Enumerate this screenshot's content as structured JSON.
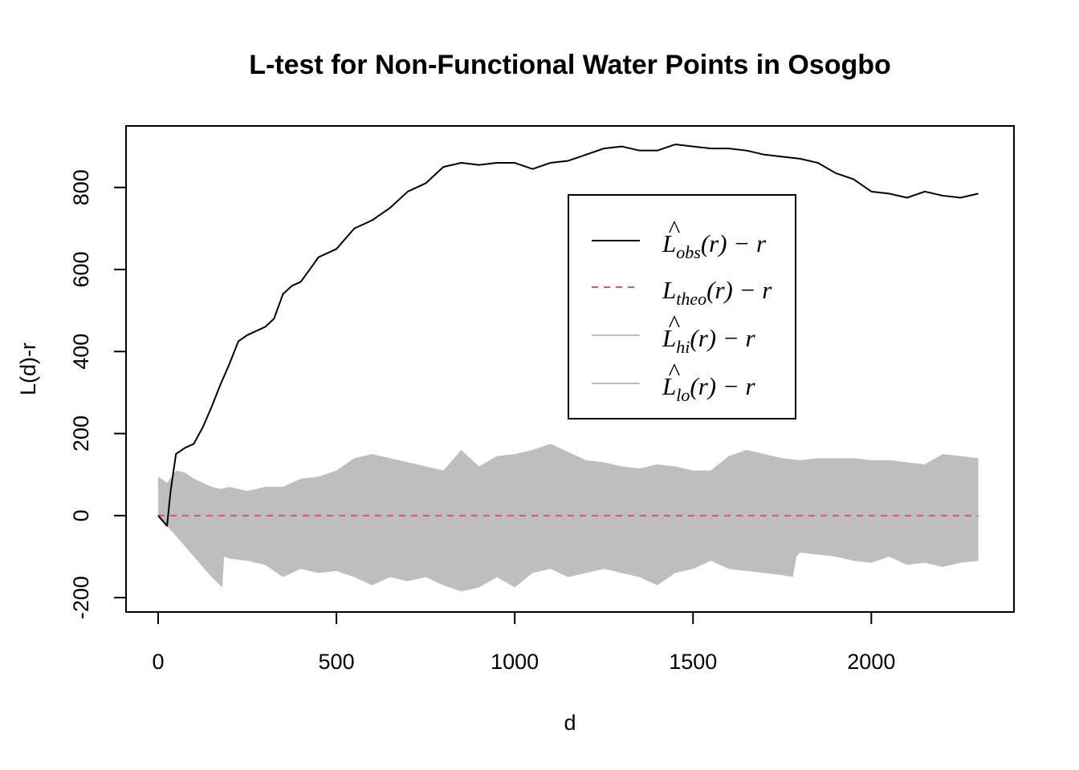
{
  "chart_data": {
    "type": "line",
    "title": "L-test for Non-Functional Water Points in Osogbo",
    "xlabel": "d",
    "ylabel": "L(d)-r",
    "xlim": [
      -90,
      2400
    ],
    "ylim": [
      -235,
      950
    ],
    "x_ticks": [
      0,
      500,
      1000,
      1500,
      2000
    ],
    "x_tick_labels": [
      "0",
      "500",
      "1000",
      "1500",
      "2000"
    ],
    "y_ticks": [
      -200,
      0,
      200,
      400,
      600,
      800
    ],
    "y_tick_labels": [
      "-200",
      "0",
      "200",
      "400",
      "600",
      "800"
    ],
    "grid": false,
    "legend_position": "top-right",
    "legend": [
      {
        "label": "L̂obs(r) − r",
        "main": "L",
        "hat": "^",
        "sub": "obs",
        "tail": "(r) − r",
        "color": "#000000",
        "style": "solid"
      },
      {
        "label": "Ltheo(r) − r",
        "main": "L",
        "hat": "",
        "sub": "theo",
        "tail": "(r) − r",
        "color": "#DF536B",
        "style": "dashed"
      },
      {
        "label": "L̂hi(r) − r",
        "main": "L",
        "hat": "^",
        "sub": "hi",
        "tail": "(r) − r",
        "color": "#BEBEBE",
        "style": "solid"
      },
      {
        "label": "L̂lo(r) − r",
        "main": "L",
        "hat": "^",
        "sub": "lo",
        "tail": "(r) − r",
        "color": "#BEBEBE",
        "style": "solid"
      }
    ],
    "series": [
      {
        "name": "obs",
        "color": "#000000",
        "x": [
          0,
          10,
          20,
          25,
          35,
          50,
          75,
          100,
          125,
          150,
          175,
          200,
          225,
          250,
          300,
          325,
          350,
          375,
          400,
          450,
          500,
          550,
          600,
          650,
          700,
          750,
          800,
          850,
          900,
          950,
          1000,
          1050,
          1100,
          1150,
          1200,
          1250,
          1300,
          1350,
          1400,
          1450,
          1500,
          1550,
          1600,
          1650,
          1700,
          1750,
          1800,
          1850,
          1900,
          1950,
          2000,
          2050,
          2100,
          2150,
          2200,
          2250,
          2300
        ],
        "y": [
          0,
          -10,
          -20,
          -25,
          60,
          150,
          165,
          175,
          215,
          265,
          320,
          370,
          425,
          440,
          460,
          480,
          540,
          560,
          570,
          630,
          650,
          700,
          720,
          750,
          790,
          810,
          850,
          860,
          855,
          860,
          860,
          845,
          860,
          865,
          880,
          895,
          900,
          890,
          890,
          905,
          900,
          895,
          895,
          890,
          880,
          875,
          870,
          860,
          835,
          820,
          790,
          785,
          775,
          790,
          780,
          775,
          785
        ]
      },
      {
        "name": "theo",
        "color": "#DF536B",
        "x": [
          0,
          2300
        ],
        "y": [
          0,
          0
        ]
      },
      {
        "name": "hi",
        "color": "#BEBEBE",
        "x": [
          0,
          25,
          50,
          75,
          100,
          125,
          150,
          175,
          200,
          250,
          300,
          350,
          400,
          450,
          500,
          550,
          600,
          650,
          700,
          750,
          800,
          850,
          900,
          950,
          1000,
          1050,
          1100,
          1150,
          1200,
          1250,
          1300,
          1350,
          1400,
          1450,
          1500,
          1550,
          1600,
          1650,
          1700,
          1750,
          1800,
          1850,
          1900,
          1950,
          2000,
          2050,
          2100,
          2150,
          2200,
          2250,
          2300
        ],
        "y": [
          95,
          80,
          110,
          105,
          90,
          80,
          70,
          65,
          70,
          60,
          70,
          70,
          90,
          95,
          110,
          140,
          150,
          140,
          130,
          120,
          110,
          160,
          120,
          145,
          150,
          160,
          175,
          155,
          135,
          130,
          120,
          115,
          125,
          120,
          110,
          110,
          145,
          160,
          150,
          140,
          135,
          140,
          140,
          140,
          135,
          135,
          130,
          125,
          150,
          145,
          140
        ]
      },
      {
        "name": "lo",
        "color": "#BEBEBE",
        "x": [
          0,
          25,
          50,
          75,
          100,
          125,
          150,
          180,
          185,
          200,
          250,
          300,
          350,
          400,
          450,
          500,
          550,
          600,
          650,
          700,
          750,
          800,
          850,
          900,
          950,
          1000,
          1050,
          1100,
          1150,
          1200,
          1250,
          1300,
          1350,
          1400,
          1450,
          1500,
          1550,
          1600,
          1650,
          1700,
          1750,
          1780,
          1790,
          1800,
          1850,
          1900,
          1950,
          2000,
          2050,
          2100,
          2150,
          2200,
          2250,
          2300
        ],
        "y": [
          0,
          -25,
          -50,
          -75,
          -100,
          -125,
          -150,
          -175,
          -100,
          -105,
          -110,
          -120,
          -150,
          -130,
          -140,
          -135,
          -150,
          -170,
          -150,
          -160,
          -150,
          -170,
          -185,
          -175,
          -150,
          -175,
          -140,
          -130,
          -150,
          -140,
          -130,
          -140,
          -150,
          -170,
          -140,
          -130,
          -110,
          -130,
          -135,
          -140,
          -145,
          -150,
          -100,
          -90,
          -95,
          -100,
          -110,
          -115,
          -100,
          -120,
          -115,
          -125,
          -115,
          -110
        ]
      }
    ]
  }
}
